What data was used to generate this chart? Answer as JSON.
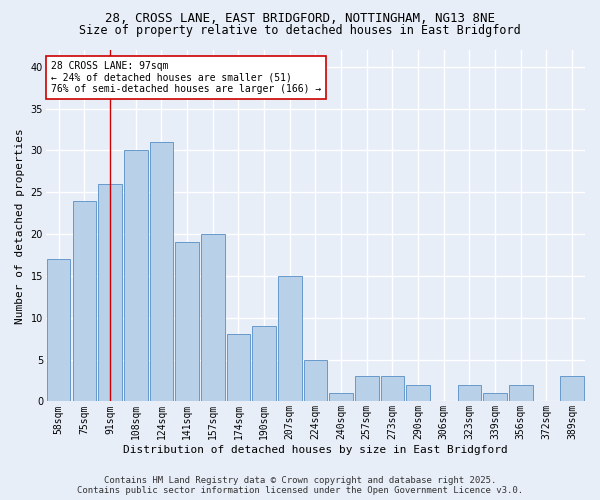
{
  "title_line1": "28, CROSS LANE, EAST BRIDGFORD, NOTTINGHAM, NG13 8NE",
  "title_line2": "Size of property relative to detached houses in East Bridgford",
  "xlabel": "Distribution of detached houses by size in East Bridgford",
  "ylabel": "Number of detached properties",
  "categories": [
    "58sqm",
    "75sqm",
    "91sqm",
    "108sqm",
    "124sqm",
    "141sqm",
    "157sqm",
    "174sqm",
    "190sqm",
    "207sqm",
    "224sqm",
    "240sqm",
    "257sqm",
    "273sqm",
    "290sqm",
    "306sqm",
    "323sqm",
    "339sqm",
    "356sqm",
    "372sqm",
    "389sqm"
  ],
  "values": [
    17,
    24,
    26,
    30,
    31,
    19,
    20,
    8,
    9,
    15,
    5,
    1,
    3,
    3,
    2,
    0,
    2,
    1,
    2,
    0,
    3
  ],
  "bar_color": "#b8d0e8",
  "bar_edge_color": "#6699cc",
  "background_color": "#e8eef8",
  "grid_color": "#ffffff",
  "annotation_text": "28 CROSS LANE: 97sqm\n← 24% of detached houses are smaller (51)\n76% of semi-detached houses are larger (166) →",
  "annotation_box_color": "#ffffff",
  "annotation_box_edge": "#cc0000",
  "vline_x_index": 2,
  "vline_color": "#cc0000",
  "ylim": [
    0,
    42
  ],
  "yticks": [
    0,
    5,
    10,
    15,
    20,
    25,
    30,
    35,
    40
  ],
  "footer_line1": "Contains HM Land Registry data © Crown copyright and database right 2025.",
  "footer_line2": "Contains public sector information licensed under the Open Government Licence v3.0.",
  "title_fontsize": 9,
  "subtitle_fontsize": 8.5,
  "axis_label_fontsize": 8,
  "tick_fontsize": 7,
  "annotation_fontsize": 7,
  "footer_fontsize": 6.5
}
